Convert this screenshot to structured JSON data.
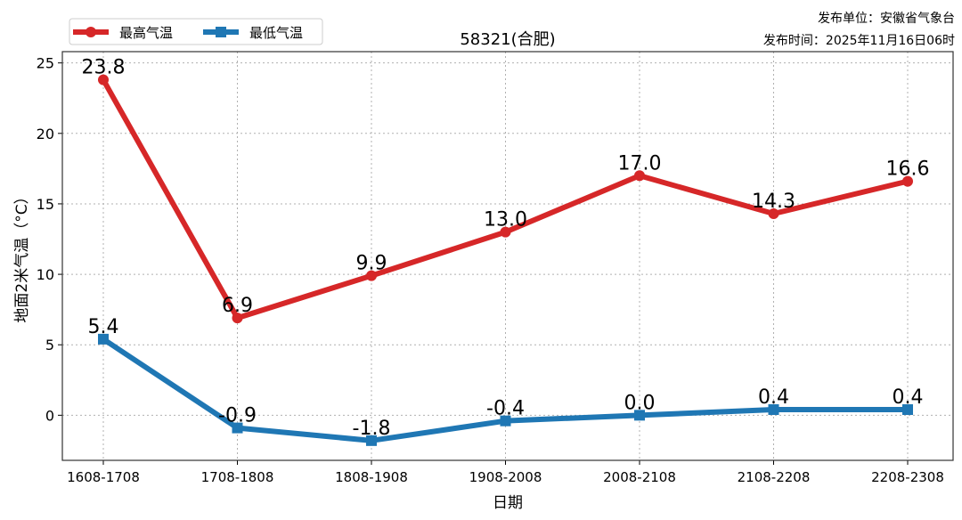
{
  "chart_data": {
    "type": "line",
    "title": "58321(合肥)",
    "xlabel": "日期",
    "ylabel": "地面2米气温（°C）",
    "categories": [
      "1608-1708",
      "1708-1808",
      "1808-1908",
      "1908-2008",
      "2008-2108",
      "2108-2208",
      "2208-2308"
    ],
    "ylim": [
      -3.2,
      25.8
    ],
    "yticks": [
      0,
      5,
      10,
      15,
      20,
      25
    ],
    "grid": true,
    "legend_position": "top-left",
    "series": [
      {
        "name": "最高气温",
        "color": "#d62728",
        "marker": "circle",
        "values": [
          23.8,
          6.9,
          9.9,
          13.0,
          17.0,
          14.3,
          16.6
        ],
        "labels": [
          "23.8",
          "6.9",
          "9.9",
          "13.0",
          "17.0",
          "14.3",
          "16.6"
        ]
      },
      {
        "name": "最低气温",
        "color": "#1f77b4",
        "marker": "square",
        "values": [
          5.4,
          -0.9,
          -1.8,
          -0.4,
          0.0,
          0.4,
          0.4
        ],
        "labels": [
          "5.4",
          "-0.9",
          "-1.8",
          "-0.4",
          "0.0",
          "0.4",
          "0.4"
        ]
      }
    ]
  },
  "publisher": {
    "unit": "发布单位：安徽省气象台",
    "time": "发布时间：2025年11月16日06时"
  }
}
